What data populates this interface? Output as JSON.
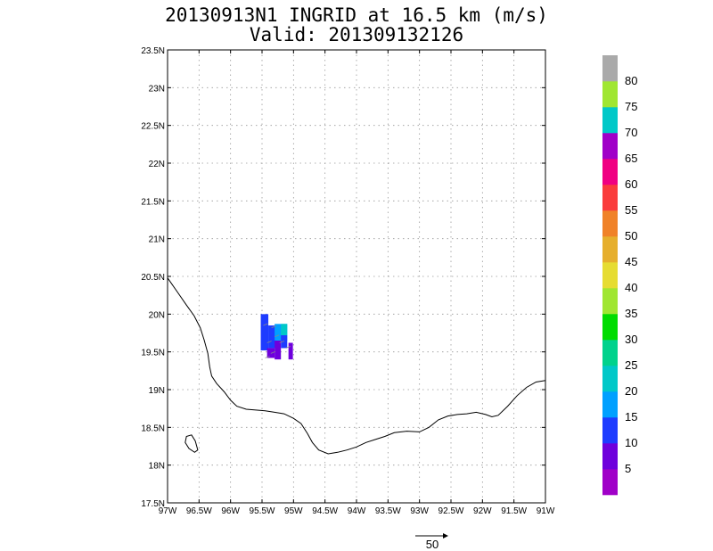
{
  "title": "20130913N1 INGRID at 16.5 km (m/s)",
  "subtitle": "Valid: 201309132126",
  "map": {
    "lon_ticks": [
      "97W",
      "96.5W",
      "96W",
      "95.5W",
      "95W",
      "94.5W",
      "94W",
      "93.5W",
      "93W",
      "92.5W",
      "92W",
      "91.5W",
      "91W"
    ],
    "lat_ticks": [
      "17.5N",
      "18N",
      "18.5N",
      "19N",
      "19.5N",
      "20N",
      "20.5N",
      "21N",
      "21.5N",
      "22N",
      "22.5N",
      "23N",
      "23.5N"
    ],
    "lon_range": [
      -97,
      -91
    ],
    "lat_range": [
      17.5,
      23.5
    ],
    "grid": true,
    "coastline": [
      [
        -97.0,
        20.48
      ],
      [
        -96.85,
        20.3
      ],
      [
        -96.7,
        20.12
      ],
      [
        -96.58,
        19.98
      ],
      [
        -96.48,
        19.82
      ],
      [
        -96.42,
        19.66
      ],
      [
        -96.36,
        19.48
      ],
      [
        -96.33,
        19.3
      ],
      [
        -96.3,
        19.18
      ],
      [
        -96.22,
        19.08
      ],
      [
        -96.1,
        18.97
      ],
      [
        -96.0,
        18.86
      ],
      [
        -95.9,
        18.78
      ],
      [
        -95.75,
        18.74
      ],
      [
        -95.6,
        18.73
      ],
      [
        -95.45,
        18.72
      ],
      [
        -95.3,
        18.7
      ],
      [
        -95.15,
        18.68
      ],
      [
        -95.0,
        18.62
      ],
      [
        -94.88,
        18.55
      ],
      [
        -94.78,
        18.42
      ],
      [
        -94.7,
        18.3
      ],
      [
        -94.6,
        18.2
      ],
      [
        -94.45,
        18.15
      ],
      [
        -94.3,
        18.17
      ],
      [
        -94.15,
        18.2
      ],
      [
        -94.0,
        18.24
      ],
      [
        -93.85,
        18.3
      ],
      [
        -93.7,
        18.34
      ],
      [
        -93.55,
        18.38
      ],
      [
        -93.4,
        18.43
      ],
      [
        -93.2,
        18.45
      ],
      [
        -93.0,
        18.44
      ],
      [
        -92.85,
        18.5
      ],
      [
        -92.7,
        18.6
      ],
      [
        -92.55,
        18.65
      ],
      [
        -92.4,
        18.67
      ],
      [
        -92.25,
        18.68
      ],
      [
        -92.1,
        18.7
      ],
      [
        -91.95,
        18.67
      ],
      [
        -91.85,
        18.64
      ],
      [
        -91.75,
        18.66
      ],
      [
        -91.6,
        18.78
      ],
      [
        -91.45,
        18.92
      ],
      [
        -91.3,
        19.03
      ],
      [
        -91.15,
        19.1
      ],
      [
        -91.0,
        19.12
      ]
    ],
    "island": [
      [
        -96.7,
        18.38
      ],
      [
        -96.62,
        18.4
      ],
      [
        -96.56,
        18.32
      ],
      [
        -96.52,
        18.2
      ],
      [
        -96.57,
        18.17
      ],
      [
        -96.66,
        18.22
      ],
      [
        -96.72,
        18.3
      ]
    ],
    "wind_cells": [
      {
        "lon": -95.52,
        "lat": 19.52,
        "w": 0.12,
        "h": 0.48,
        "speed": 12
      },
      {
        "lon": -95.4,
        "lat": 19.55,
        "w": 0.12,
        "h": 0.3,
        "speed": 12
      },
      {
        "lon": -95.42,
        "lat": 19.42,
        "w": 0.12,
        "h": 0.13,
        "speed": 5
      },
      {
        "lon": -95.3,
        "lat": 19.4,
        "w": 0.1,
        "h": 0.25,
        "speed": 7
      },
      {
        "lon": -95.3,
        "lat": 19.65,
        "w": 0.2,
        "h": 0.22,
        "speed": 18
      },
      {
        "lon": -95.2,
        "lat": 19.72,
        "w": 0.1,
        "h": 0.15,
        "speed": 22
      },
      {
        "lon": -95.2,
        "lat": 19.55,
        "w": 0.1,
        "h": 0.17,
        "speed": 12
      },
      {
        "lon": -95.08,
        "lat": 19.4,
        "w": 0.07,
        "h": 0.22,
        "speed": 5
      }
    ]
  },
  "colorbar": {
    "labels": [
      "5",
      "10",
      "15",
      "20",
      "25",
      "30",
      "35",
      "40",
      "45",
      "50",
      "55",
      "60",
      "65",
      "70",
      "75",
      "80"
    ],
    "colors": [
      "#a000c8",
      "#6e00dc",
      "#1e3cff",
      "#00a0ff",
      "#00c8c8",
      "#00d28c",
      "#00dc00",
      "#a0e632",
      "#e6dc32",
      "#e6af2d",
      "#f08228",
      "#fa3c3c",
      "#f00082",
      "#a000c8",
      "#00c8c8",
      "#a0e632",
      "#aaaaaa"
    ]
  },
  "vector_key": {
    "label": "50"
  }
}
